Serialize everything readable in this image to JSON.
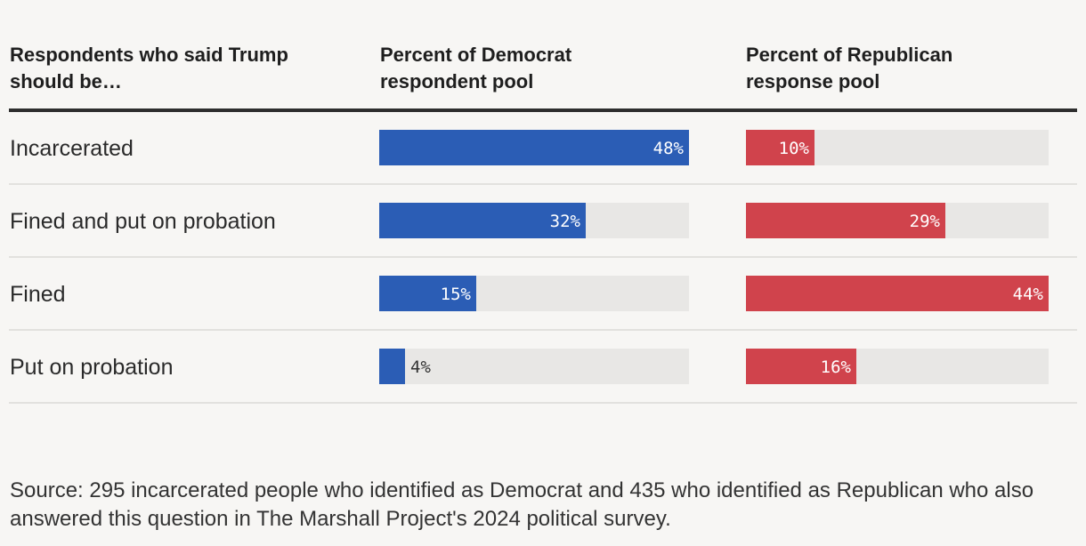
{
  "header": {
    "col1": "Respondents who said Trump\nshould be…",
    "col2": "Percent of Democrat\nrespondent pool",
    "col3": "Percent of Republican\nresponse pool"
  },
  "chart_data": {
    "type": "bar",
    "orientation": "horizontal",
    "xlim": [
      0,
      48
    ],
    "categories": [
      "Incarcerated",
      "Fined and put on probation",
      "Fined",
      "Put on probation"
    ],
    "series": [
      {
        "name": "Percent of Democrat respondent pool",
        "values": [
          48,
          32,
          15,
          4
        ],
        "color": "#2b5db5",
        "labels": [
          "48%",
          "32%",
          "15%",
          "4%"
        ]
      },
      {
        "name": "Percent of Republican response pool",
        "values": [
          10,
          29,
          44,
          16
        ],
        "color": "#d0434c",
        "labels": [
          "10%",
          "29%",
          "44%",
          "16%"
        ],
        "xlim": [
          0,
          44
        ]
      }
    ]
  },
  "source": "Source: 295 incarcerated people who identified as Democrat and 435 who identified as Republican who also answered this question in The Marshall Project's 2024 political survey."
}
